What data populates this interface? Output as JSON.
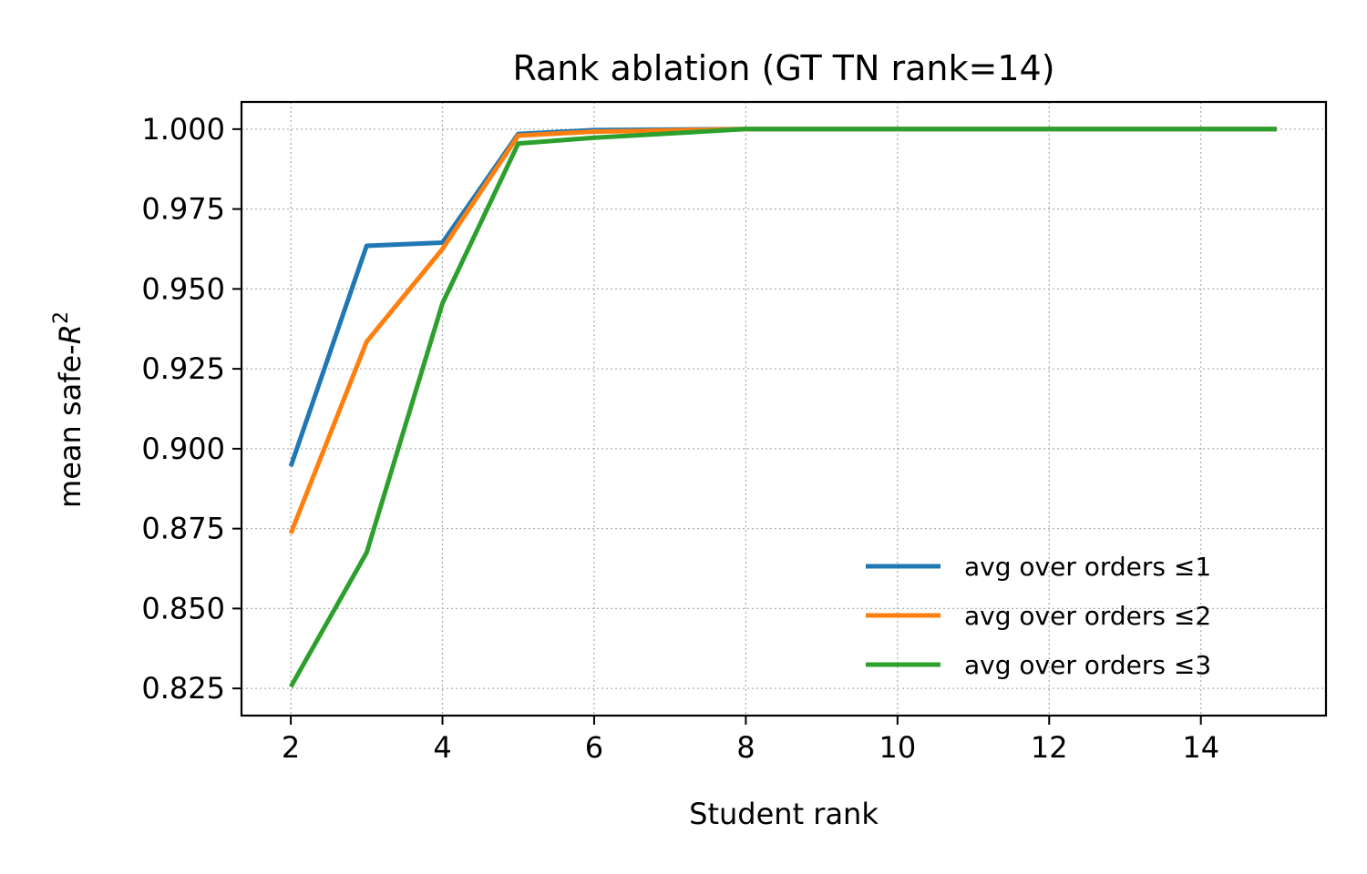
{
  "chart_data": {
    "type": "line",
    "title": "Rank ablation (GT TN rank=14)",
    "xlabel": "Student rank",
    "ylabel_prefix": "mean safe-",
    "ylabel_var": "R",
    "ylabel_sup": "2",
    "xlim": [
      1.35,
      15.65
    ],
    "ylim": [
      0.8165,
      1.0085
    ],
    "xticks": [
      2,
      4,
      6,
      8,
      10,
      12,
      14
    ],
    "yticks": [
      0.825,
      0.85,
      0.875,
      0.9,
      0.925,
      0.95,
      0.975,
      1.0
    ],
    "ytick_labels": [
      "0.825",
      "0.850",
      "0.875",
      "0.900",
      "0.925",
      "0.950",
      "0.975",
      "1.000"
    ],
    "grid": true,
    "legend_position": "lower-right",
    "x": [
      2,
      3,
      4,
      5,
      6,
      8,
      10,
      12,
      15
    ],
    "series": [
      {
        "name": "avg over orders ≤1",
        "color": "#1f77b4",
        "values": [
          0.8945,
          0.9635,
          0.9645,
          0.9985,
          0.9997,
          1.0,
          1.0,
          1.0,
          1.0
        ]
      },
      {
        "name": "avg over orders ≤2",
        "color": "#ff7f0e",
        "values": [
          0.8735,
          0.9335,
          0.9625,
          0.998,
          0.9992,
          1.0,
          1.0,
          1.0,
          1.0
        ]
      },
      {
        "name": "avg over orders ≤3",
        "color": "#2ca02c",
        "values": [
          0.8255,
          0.8675,
          0.9455,
          0.9955,
          0.9973,
          1.0,
          1.0,
          1.0,
          1.0
        ]
      }
    ]
  }
}
